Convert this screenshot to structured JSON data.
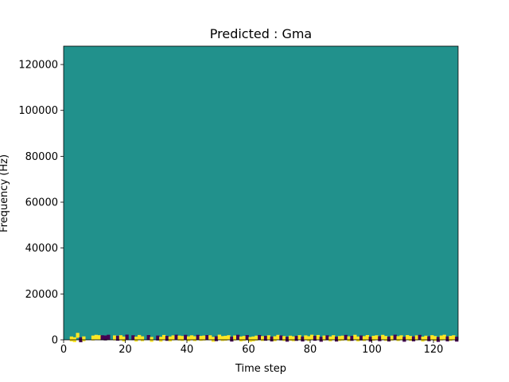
{
  "chart_data": {
    "type": "heatmap",
    "title": "Predicted : Gma",
    "xlabel": "Time step",
    "ylabel": "Frequency (Hz)",
    "xlim": [
      0,
      128
    ],
    "ylim": [
      0,
      128000
    ],
    "x_ticks": [
      0,
      20,
      40,
      60,
      80,
      100,
      120
    ],
    "y_ticks": [
      0,
      20000,
      40000,
      60000,
      80000,
      100000,
      120000
    ],
    "n_time_steps": 128,
    "n_freq_bins": 128,
    "colormap": {
      "low": "#440154",
      "mid": "#21918c",
      "high": "#fde725"
    },
    "background_value": 0,
    "note_values": {
      "low": -1,
      "high": 1
    },
    "cells": [
      [
        2,
        460,
        1
      ],
      [
        3,
        120,
        1
      ],
      [
        4,
        2020,
        1
      ],
      [
        5,
        80,
        -1
      ],
      [
        6,
        500,
        1
      ],
      [
        9,
        860,
        1
      ],
      [
        10,
        1180,
        1
      ],
      [
        11,
        1030,
        1
      ],
      [
        12,
        990,
        -1
      ],
      [
        13,
        880,
        -1
      ],
      [
        14,
        1200,
        -1
      ],
      [
        16,
        920,
        1
      ],
      [
        17,
        760,
        -1
      ],
      [
        18,
        1000,
        1
      ],
      [
        19,
        440,
        1
      ],
      [
        20,
        1260,
        -1
      ],
      [
        22,
        980,
        -1
      ],
      [
        23,
        380,
        1
      ],
      [
        24,
        1120,
        1
      ],
      [
        25,
        520,
        1
      ],
      [
        27,
        1080,
        -1
      ],
      [
        28,
        250,
        1
      ],
      [
        30,
        860,
        -1
      ],
      [
        31,
        320,
        1
      ],
      [
        32,
        1120,
        1
      ],
      [
        33,
        700,
        -1
      ],
      [
        34,
        440,
        1
      ],
      [
        35,
        940,
        1
      ],
      [
        36,
        1230,
        -1
      ],
      [
        37,
        840,
        1
      ],
      [
        38,
        660,
        1
      ],
      [
        39,
        1180,
        -1
      ],
      [
        40,
        520,
        1
      ],
      [
        41,
        960,
        1
      ],
      [
        42,
        580,
        1
      ],
      [
        43,
        1160,
        -1
      ],
      [
        44,
        700,
        1
      ],
      [
        45,
        850,
        1
      ],
      [
        46,
        1080,
        -1
      ],
      [
        47,
        980,
        1
      ],
      [
        48,
        280,
        1
      ],
      [
        49,
        560,
        -1
      ],
      [
        50,
        1240,
        1
      ],
      [
        51,
        620,
        1
      ],
      [
        52,
        760,
        1
      ],
      [
        53,
        1010,
        1
      ],
      [
        54,
        380,
        -1
      ],
      [
        55,
        880,
        1
      ],
      [
        56,
        1190,
        -1
      ],
      [
        57,
        450,
        1
      ],
      [
        58,
        690,
        1
      ],
      [
        59,
        1070,
        -1
      ],
      [
        60,
        240,
        1
      ],
      [
        61,
        460,
        1
      ],
      [
        62,
        820,
        1
      ],
      [
        63,
        1100,
        -1
      ],
      [
        64,
        620,
        1
      ],
      [
        65,
        740,
        -1
      ],
      [
        66,
        980,
        1
      ],
      [
        67,
        430,
        -1
      ],
      [
        68,
        560,
        1
      ],
      [
        69,
        1160,
        1
      ],
      [
        70,
        900,
        -1
      ],
      [
        71,
        640,
        1
      ],
      [
        72,
        330,
        -1
      ],
      [
        73,
        800,
        1
      ],
      [
        74,
        520,
        1
      ],
      [
        75,
        690,
        -1
      ],
      [
        76,
        1040,
        1
      ],
      [
        77,
        420,
        -1
      ],
      [
        78,
        940,
        1
      ],
      [
        79,
        580,
        1
      ],
      [
        80,
        1220,
        1
      ],
      [
        81,
        740,
        -1
      ],
      [
        82,
        1110,
        1
      ],
      [
        83,
        310,
        -1
      ],
      [
        84,
        860,
        1
      ],
      [
        85,
        960,
        -1
      ],
      [
        86,
        470,
        1
      ],
      [
        87,
        1010,
        1
      ],
      [
        88,
        390,
        -1
      ],
      [
        89,
        650,
        1
      ],
      [
        90,
        820,
        1
      ],
      [
        91,
        1140,
        -1
      ],
      [
        92,
        530,
        1
      ],
      [
        93,
        700,
        -1
      ],
      [
        94,
        1200,
        1
      ],
      [
        95,
        440,
        1
      ],
      [
        96,
        880,
        -1
      ],
      [
        97,
        610,
        1
      ],
      [
        98,
        1090,
        1
      ],
      [
        99,
        350,
        -1
      ],
      [
        100,
        760,
        1
      ],
      [
        101,
        980,
        1
      ],
      [
        102,
        560,
        -1
      ],
      [
        103,
        1170,
        1
      ],
      [
        104,
        690,
        1
      ],
      [
        105,
        420,
        -1
      ],
      [
        106,
        840,
        1
      ],
      [
        107,
        1230,
        -1
      ],
      [
        108,
        600,
        1
      ],
      [
        109,
        970,
        1
      ],
      [
        110,
        300,
        -1
      ],
      [
        111,
        1060,
        1
      ],
      [
        112,
        710,
        1
      ],
      [
        113,
        480,
        -1
      ],
      [
        114,
        930,
        1
      ],
      [
        115,
        1150,
        -1
      ],
      [
        116,
        380,
        1
      ],
      [
        117,
        800,
        1
      ],
      [
        118,
        540,
        -1
      ],
      [
        119,
        1020,
        1
      ],
      [
        120,
        660,
        1
      ],
      [
        121,
        240,
        -1
      ],
      [
        122,
        890,
        1
      ],
      [
        123,
        1210,
        1
      ],
      [
        124,
        470,
        -1
      ],
      [
        125,
        720,
        1
      ],
      [
        126,
        990,
        1
      ],
      [
        127,
        360,
        -1
      ]
    ]
  }
}
